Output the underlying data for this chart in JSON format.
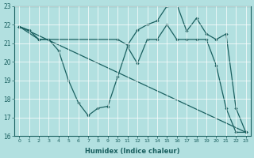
{
  "xlabel": "Humidex (Indice chaleur)",
  "bg_color": "#b2e0e0",
  "line_color": "#1a6060",
  "grid_color": "#ffffff",
  "xlim": [
    -0.5,
    23.5
  ],
  "ylim": [
    16,
    23
  ],
  "yticks": [
    16,
    17,
    18,
    19,
    20,
    21,
    22,
    23
  ],
  "xticks": [
    0,
    1,
    2,
    3,
    4,
    5,
    6,
    7,
    8,
    9,
    10,
    11,
    12,
    13,
    14,
    15,
    16,
    17,
    18,
    19,
    20,
    21,
    22,
    23
  ],
  "line1_x": [
    0,
    1,
    2,
    3,
    4,
    5,
    6,
    7,
    8,
    9,
    10,
    11,
    12,
    13,
    14,
    15,
    16,
    17,
    18,
    19,
    20,
    21,
    22,
    23
  ],
  "line1_y": [
    21.9,
    21.7,
    21.2,
    21.2,
    20.6,
    19.0,
    17.8,
    17.1,
    17.5,
    17.6,
    19.2,
    20.8,
    19.9,
    21.2,
    21.2,
    22.0,
    21.2,
    21.2,
    21.2,
    21.2,
    19.8,
    17.5,
    16.2,
    16.2
  ],
  "line3_x": [
    0,
    2,
    3,
    10,
    11,
    12,
    13,
    14,
    15,
    16,
    17,
    18,
    19,
    20,
    21,
    22,
    23
  ],
  "line3_y": [
    21.9,
    21.2,
    21.2,
    21.2,
    20.9,
    21.7,
    22.0,
    22.2,
    23.0,
    23.1,
    21.65,
    22.35,
    21.5,
    21.2,
    21.5,
    17.5,
    16.2
  ]
}
